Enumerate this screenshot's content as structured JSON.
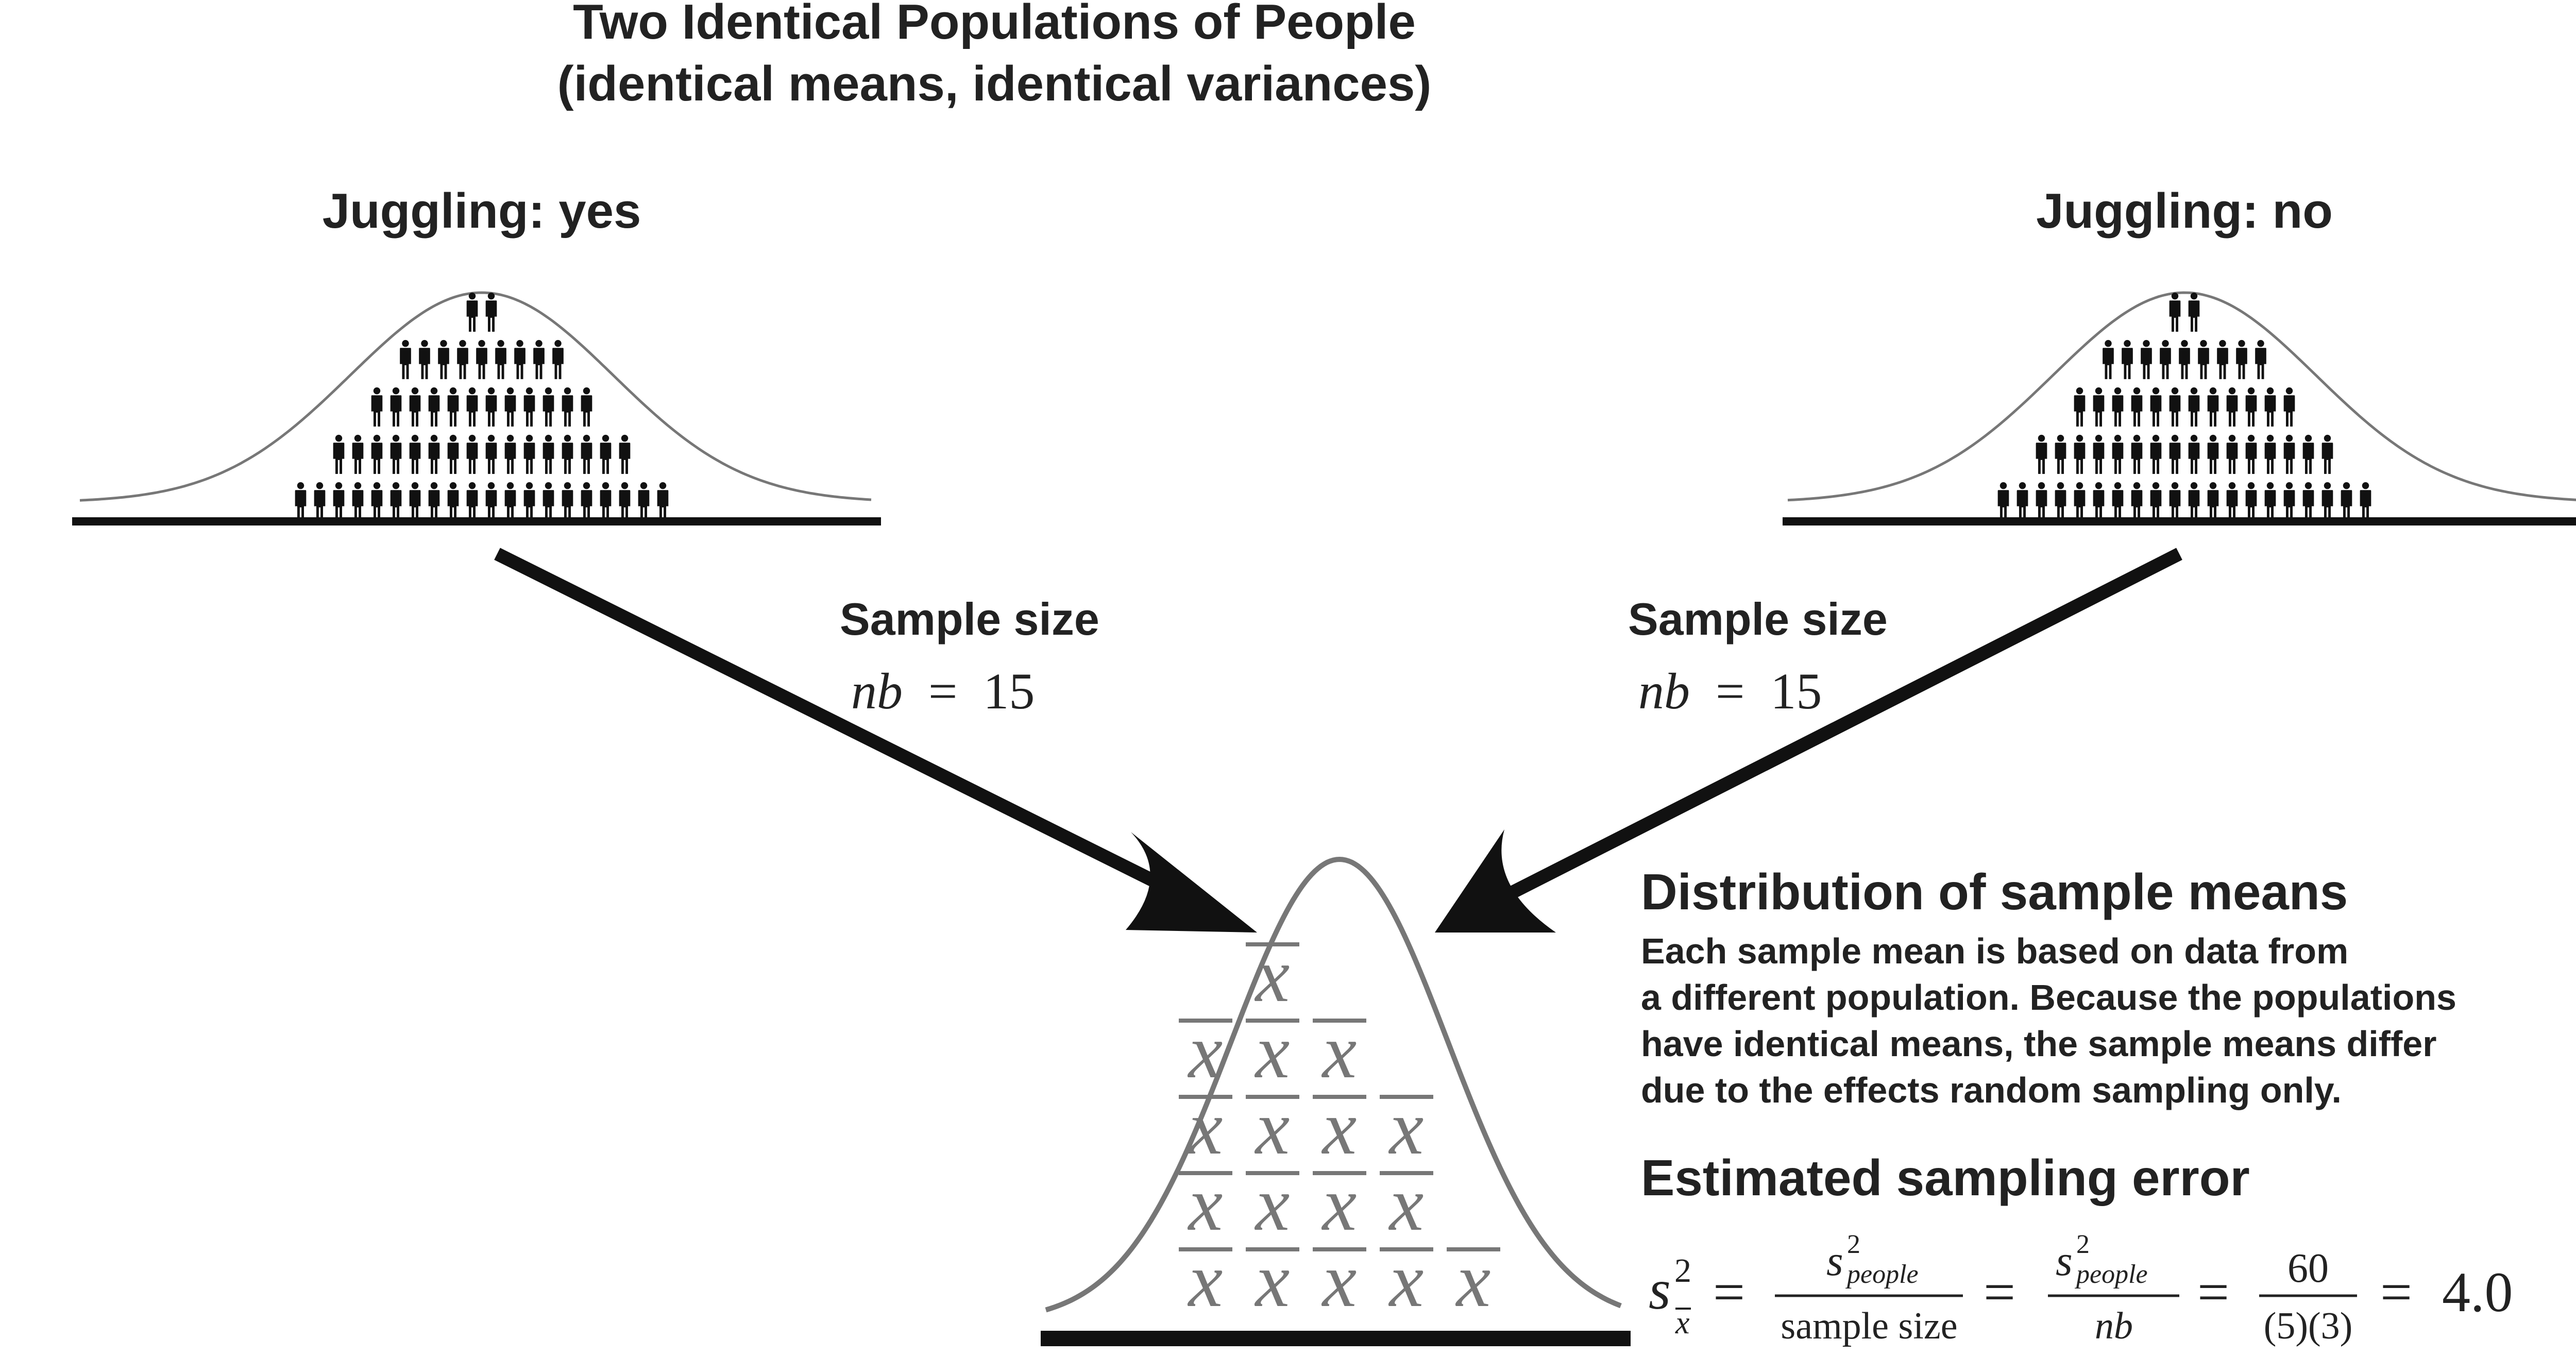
{
  "title": {
    "line1": "Two Identical Populations of People",
    "line2": "(identical means, identical variances)"
  },
  "left_population": {
    "label": "Juggling: yes",
    "rows": [
      2,
      9,
      12,
      16,
      20
    ]
  },
  "right_population": {
    "label": "Juggling: no",
    "rows": [
      2,
      9,
      12,
      16,
      20
    ]
  },
  "left_sample": {
    "heading": "Sample size",
    "var": "nb",
    "eq": "=",
    "value": "15"
  },
  "right_sample": {
    "heading": "Sample size",
    "var": "nb",
    "eq": "=",
    "value": "15"
  },
  "distribution": {
    "symbol": "x",
    "columns": [
      4,
      5,
      4,
      3,
      1
    ]
  },
  "description": {
    "heading": "Distribution of sample means",
    "lines": [
      "Each sample mean is based on data from",
      "a different population. Because the populations",
      "have identical means, the sample means differ",
      "due to the effects random sampling only."
    ]
  },
  "error": {
    "heading": "Estimated sampling error",
    "formula": {
      "lhs_base": "s",
      "lhs_sup": "2",
      "lhs_sub": "x",
      "eq": "=",
      "f1_num_base": "s",
      "f1_num_sup": "2",
      "f1_num_sub": "people",
      "f1_den": "sample size",
      "f2_num_base": "s",
      "f2_num_sup": "2",
      "f2_num_sub": "people",
      "f2_den": "nb",
      "f3_num": "60",
      "f3_den": "(5)(3)",
      "result": "4.0"
    }
  }
}
